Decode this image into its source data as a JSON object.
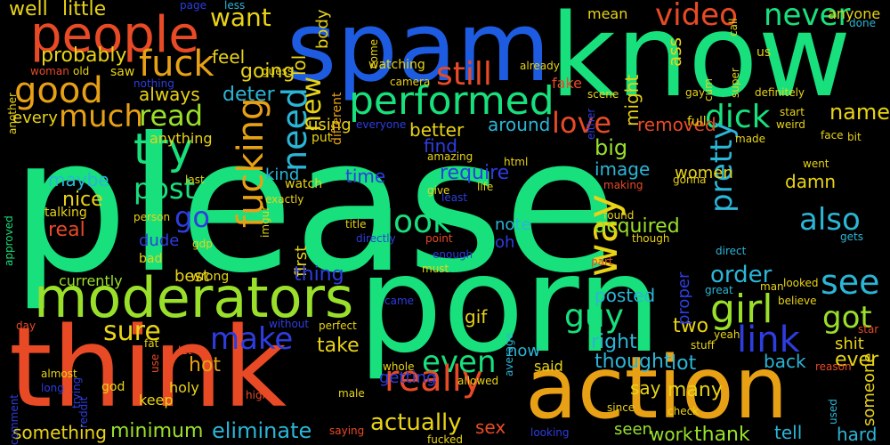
{
  "words": [
    {
      "text": "please",
      "color": "#17e07d"
    },
    {
      "text": "porn",
      "color": "#17e07d"
    },
    {
      "text": "spam",
      "color": "#1d5ce0"
    },
    {
      "text": "know",
      "color": "#17e07d"
    },
    {
      "text": "think",
      "color": "#e84a26"
    },
    {
      "text": "action",
      "color": "#e8a115"
    },
    {
      "text": "moderators",
      "color": "#9ae02a"
    },
    {
      "text": "people",
      "color": "#e84a26"
    },
    {
      "text": "performed",
      "color": "#17e07d"
    },
    {
      "text": "good",
      "color": "#e8a115"
    },
    {
      "text": "fuck",
      "color": "#e8a115"
    },
    {
      "text": "try",
      "color": "#17e07d"
    },
    {
      "text": "want",
      "color": "#e8d315"
    },
    {
      "text": "video",
      "color": "#e84a26"
    },
    {
      "text": "never",
      "color": "#17e07d"
    },
    {
      "text": "still",
      "color": "#e84a26"
    },
    {
      "text": "much",
      "color": "#e8a115"
    },
    {
      "text": "read",
      "color": "#9ae02a"
    },
    {
      "text": "post",
      "color": "#17e07d"
    },
    {
      "text": "fucking",
      "color": "#e8a115"
    },
    {
      "text": "need",
      "color": "#2bb5d6"
    },
    {
      "text": "new",
      "color": "#e8d315"
    },
    {
      "text": "love",
      "color": "#e84a26"
    },
    {
      "text": "dick",
      "color": "#17e07d"
    },
    {
      "text": "name",
      "color": "#e8d315"
    },
    {
      "text": "look",
      "color": "#17e07d"
    },
    {
      "text": "way",
      "color": "#e8d315"
    },
    {
      "text": "pretty",
      "color": "#2bb5d6"
    },
    {
      "text": "also",
      "color": "#2bb5d6"
    },
    {
      "text": "girl",
      "color": "#9ae02a"
    },
    {
      "text": "see",
      "color": "#2bb5d6"
    },
    {
      "text": "got",
      "color": "#9ae02a"
    },
    {
      "text": "link",
      "color": "#2e3de0"
    },
    {
      "text": "make",
      "color": "#2e3de0"
    },
    {
      "text": "sure",
      "color": "#e8d315"
    },
    {
      "text": "guy",
      "color": "#17e07d"
    },
    {
      "text": "even",
      "color": "#17e07d"
    },
    {
      "text": "really",
      "color": "#e84a26"
    },
    {
      "text": "actually",
      "color": "#e8d315"
    },
    {
      "text": "eliminate",
      "color": "#2bb5d6"
    },
    {
      "text": "minimum",
      "color": "#9ae02a"
    },
    {
      "text": "go",
      "color": "#2e3de0"
    },
    {
      "text": "going",
      "color": "#e8d315"
    },
    {
      "text": "feel",
      "color": "#e8d315"
    },
    {
      "text": "deter",
      "color": "#2bb5d6"
    },
    {
      "text": "well",
      "color": "#e8d315"
    },
    {
      "text": "little",
      "color": "#e8d315"
    },
    {
      "text": "probably",
      "color": "#e8d315"
    },
    {
      "text": "always",
      "color": "#e8d315"
    },
    {
      "text": "every",
      "color": "#e8d315"
    },
    {
      "text": "anything",
      "color": "#e8d315"
    },
    {
      "text": "maybe",
      "color": "#2bb5d6"
    },
    {
      "text": "nice",
      "color": "#e8d315"
    },
    {
      "text": "real",
      "color": "#e84a26"
    },
    {
      "text": "dude",
      "color": "#2e3de0"
    },
    {
      "text": "best",
      "color": "#e8d315"
    },
    {
      "text": "hot",
      "color": "#e8a115"
    },
    {
      "text": "lol",
      "color": "#e8d315"
    },
    {
      "text": "body",
      "color": "#e8d315"
    },
    {
      "text": "using",
      "color": "#e8d315"
    },
    {
      "text": "better",
      "color": "#e8d315"
    },
    {
      "text": "find",
      "color": "#2e3de0"
    },
    {
      "text": "require",
      "color": "#2e3de0"
    },
    {
      "text": "time",
      "color": "#2e3de0"
    },
    {
      "text": "kind",
      "color": "#2bb5d6"
    },
    {
      "text": "first",
      "color": "#e8d315"
    },
    {
      "text": "note",
      "color": "#2bb5d6"
    },
    {
      "text": "oh",
      "color": "#2e3de0"
    },
    {
      "text": "image",
      "color": "#2bb5d6"
    },
    {
      "text": "acquired",
      "color": "#9ae02a"
    },
    {
      "text": "women",
      "color": "#e8d315"
    },
    {
      "text": "damn",
      "color": "#e8d315"
    },
    {
      "text": "removed",
      "color": "#e84a26"
    },
    {
      "text": "around",
      "color": "#2bb5d6"
    },
    {
      "text": "big",
      "color": "#9ae02a"
    },
    {
      "text": "order",
      "color": "#2bb5d6"
    },
    {
      "text": "posted",
      "color": "#2bb5d6"
    },
    {
      "text": "right",
      "color": "#2bb5d6"
    },
    {
      "text": "now",
      "color": "#2bb5d6"
    },
    {
      "text": "two",
      "color": "#e8d315"
    },
    {
      "text": "thought",
      "color": "#2bb5d6"
    },
    {
      "text": "lot",
      "color": "#2bb5d6"
    },
    {
      "text": "shit",
      "color": "#e8d315"
    },
    {
      "text": "ever",
      "color": "#e8d315"
    },
    {
      "text": "back",
      "color": "#2bb5d6"
    },
    {
      "text": "many",
      "color": "#e8d315"
    },
    {
      "text": "say",
      "color": "#e8d315"
    },
    {
      "text": "tell",
      "color": "#2bb5d6"
    },
    {
      "text": "hard",
      "color": "#2bb5d6"
    },
    {
      "text": "thank",
      "color": "#9ae02a"
    },
    {
      "text": "work",
      "color": "#9ae02a"
    },
    {
      "text": "seen",
      "color": "#9ae02a"
    },
    {
      "text": "gif",
      "color": "#e8d315"
    },
    {
      "text": "take",
      "color": "#e8d315"
    },
    {
      "text": "thing",
      "color": "#2e3de0"
    },
    {
      "text": "getting",
      "color": "#2e3de0"
    },
    {
      "text": "sex",
      "color": "#e84a26"
    },
    {
      "text": "said",
      "color": "#e8d315"
    },
    {
      "text": "something",
      "color": "#e8d315"
    },
    {
      "text": "someone",
      "color": "#e8d315"
    },
    {
      "text": "proper",
      "color": "#2e3de0"
    },
    {
      "text": "ass",
      "color": "#e8d315"
    },
    {
      "text": "might",
      "color": "#e8d315"
    },
    {
      "text": "mean",
      "color": "#e8d315"
    },
    {
      "text": "anyone",
      "color": "#e8d315"
    },
    {
      "text": "fake",
      "color": "#e84a26"
    },
    {
      "text": "watching",
      "color": "#e8d315"
    },
    {
      "text": "watch",
      "color": "#e8d315"
    },
    {
      "text": "talking",
      "color": "#e8d315"
    },
    {
      "text": "holy",
      "color": "#e8d315"
    },
    {
      "text": "keep",
      "color": "#e8d315"
    },
    {
      "text": "god",
      "color": "#e8d315"
    },
    {
      "text": "currently",
      "color": "#9ae02a"
    },
    {
      "text": "wrong",
      "color": "#e8d315"
    },
    {
      "text": "bad",
      "color": "#e8d315"
    },
    {
      "text": "put",
      "color": "#e8d315"
    },
    {
      "text": "saw",
      "color": "#e8d315"
    },
    {
      "text": "old",
      "color": "#e8d315"
    },
    {
      "text": "woman",
      "color": "#e84a26"
    },
    {
      "text": "another",
      "color": "#e8d315"
    },
    {
      "text": "approved",
      "color": "#17e07d"
    },
    {
      "text": "nothing",
      "color": "#2e3de0"
    },
    {
      "text": "page",
      "color": "#2e3de0"
    },
    {
      "text": "different",
      "color": "#e8a115"
    },
    {
      "text": "come",
      "color": "#e8d315"
    },
    {
      "text": "camera",
      "color": "#e8d315"
    },
    {
      "text": "already",
      "color": "#e8d315"
    },
    {
      "text": "scene",
      "color": "#e8d315"
    },
    {
      "text": "us",
      "color": "#e8d315"
    },
    {
      "text": "super",
      "color": "#e8d315"
    },
    {
      "text": "call",
      "color": "#e8d315"
    },
    {
      "text": "gay",
      "color": "#e8d315"
    },
    {
      "text": "cum",
      "color": "#e8d315"
    },
    {
      "text": "full",
      "color": "#e8d315"
    },
    {
      "text": "definitely",
      "color": "#e8d315"
    },
    {
      "text": "done",
      "color": "#2bb5d6"
    },
    {
      "text": "start",
      "color": "#e8d315"
    },
    {
      "text": "weird",
      "color": "#e8d315"
    },
    {
      "text": "face",
      "color": "#e8d315"
    },
    {
      "text": "bit",
      "color": "#e8d315"
    },
    {
      "text": "made",
      "color": "#e8d315"
    },
    {
      "text": "either",
      "color": "#2e3de0"
    },
    {
      "text": "guess",
      "color": "#e8d315"
    },
    {
      "text": "everyone",
      "color": "#2e3de0"
    },
    {
      "text": "less",
      "color": "#2bb5d6"
    },
    {
      "text": "html",
      "color": "#e8d315"
    },
    {
      "text": "amazing",
      "color": "#e8d315"
    },
    {
      "text": "give",
      "color": "#e8d315"
    },
    {
      "text": "life",
      "color": "#e8d315"
    },
    {
      "text": "least",
      "color": "#2e3de0"
    },
    {
      "text": "making",
      "color": "#e84a26"
    },
    {
      "text": "gonna",
      "color": "#e8d315"
    },
    {
      "text": "went",
      "color": "#e8d315"
    },
    {
      "text": "last",
      "color": "#e8d315"
    },
    {
      "text": "person",
      "color": "#e8d315"
    },
    {
      "text": "exactly",
      "color": "#e8d315"
    },
    {
      "text": "imgur",
      "color": "#e8d315"
    },
    {
      "text": "title",
      "color": "#e8d315"
    },
    {
      "text": "directly",
      "color": "#2e3de0"
    },
    {
      "text": "point",
      "color": "#e84a26"
    },
    {
      "text": "enough",
      "color": "#2e3de0"
    },
    {
      "text": "must",
      "color": "#e8d315"
    },
    {
      "text": "found",
      "color": "#e8d315"
    },
    {
      "text": "though",
      "color": "#e8d315"
    },
    {
      "text": "gets",
      "color": "#2bb5d6"
    },
    {
      "text": "part",
      "color": "#e84a26"
    },
    {
      "text": "direct",
      "color": "#2bb5d6"
    },
    {
      "text": "gdp",
      "color": "#e8d315"
    },
    {
      "text": "great",
      "color": "#2bb5d6"
    },
    {
      "text": "man",
      "color": "#e8d315"
    },
    {
      "text": "looked",
      "color": "#e8d315"
    },
    {
      "text": "believe",
      "color": "#e8d315"
    },
    {
      "text": "yeah",
      "color": "#e8d315"
    },
    {
      "text": "star",
      "color": "#e84a26"
    },
    {
      "text": "reason",
      "color": "#e84a26"
    },
    {
      "text": "stuff",
      "color": "#e8d315"
    },
    {
      "text": "average",
      "color": "#2bb5d6"
    },
    {
      "text": "came",
      "color": "#2e3de0"
    },
    {
      "text": "without",
      "color": "#2e3de0"
    },
    {
      "text": "perfect",
      "color": "#e8d315"
    },
    {
      "text": "day",
      "color": "#e84a26"
    },
    {
      "text": "fat",
      "color": "#e8d315"
    },
    {
      "text": "use",
      "color": "#e84a26"
    },
    {
      "text": "let",
      "color": "#e84a26"
    },
    {
      "text": "high",
      "color": "#e84a26"
    },
    {
      "text": "whole",
      "color": "#e8d315"
    },
    {
      "text": "male",
      "color": "#e8d315"
    },
    {
      "text": "allowed",
      "color": "#e8d315"
    },
    {
      "text": "since",
      "color": "#e8d315"
    },
    {
      "text": "check",
      "color": "#e8d315"
    },
    {
      "text": "used",
      "color": "#2bb5d6"
    },
    {
      "text": "trying",
      "color": "#2e3de0"
    },
    {
      "text": "reddit",
      "color": "#2e3de0"
    },
    {
      "text": "almost",
      "color": "#e8d315"
    },
    {
      "text": "long",
      "color": "#2e3de0"
    },
    {
      "text": "comment",
      "color": "#2e3de0"
    },
    {
      "text": "saying",
      "color": "#e84a26"
    },
    {
      "text": "fucked",
      "color": "#e8d315"
    },
    {
      "text": "looking",
      "color": "#2e3de0"
    }
  ]
}
